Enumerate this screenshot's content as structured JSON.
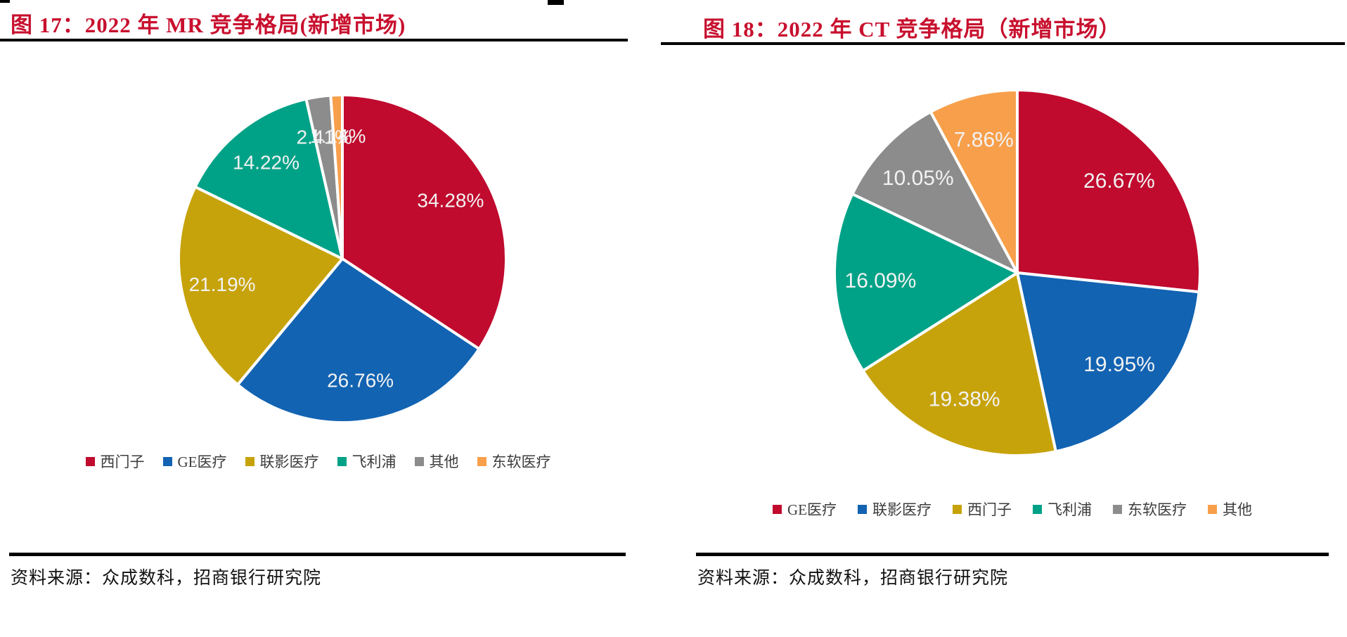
{
  "chart_data": [
    {
      "type": "pie",
      "title": "图 17：2022 年 MR 竞争格局(新增市场)",
      "categories": [
        "西门子",
        "GE医疗",
        "联影医疗",
        "飞利浦",
        "其他",
        "东软医疗"
      ],
      "values": [
        34.28,
        26.76,
        21.19,
        14.22,
        2.41,
        1.14
      ],
      "labels": [
        "34.28%",
        "26.76%",
        "21.19%",
        "14.22%",
        "2.41%",
        "1.14%"
      ],
      "colors": [
        "#C00A2E",
        "#1263B2",
        "#C7A30B",
        "#00A287",
        "#8C8C8C",
        "#F89F4B"
      ],
      "start_angle_deg": 0,
      "direction": "clockwise",
      "label_color": "#F2F2F2",
      "legend_position": "bottom",
      "source": "资料来源：众成数科，招商银行研究院"
    },
    {
      "type": "pie",
      "title": "图 18：2022 年 CT 竞争格局（新增市场）",
      "categories": [
        "GE医疗",
        "联影医疗",
        "西门子",
        "飞利浦",
        "东软医疗",
        "其他"
      ],
      "values": [
        26.67,
        19.95,
        19.38,
        16.09,
        10.05,
        7.86
      ],
      "labels": [
        "26.67%",
        "19.95%",
        "19.38%",
        "16.09%",
        "10.05%",
        "7.86%"
      ],
      "colors": [
        "#C00A2E",
        "#1263B2",
        "#C7A30B",
        "#00A287",
        "#8C8C8C",
        "#F89F4B"
      ],
      "start_angle_deg": 0,
      "direction": "clockwise",
      "label_color": "#F2F2F2",
      "legend_position": "bottom",
      "source": "资料来源：众成数科，招商银行研究院"
    }
  ],
  "styles": {
    "title_color": "#C8102E",
    "legend_text_color": "#3D3D3D",
    "source_text_color": "#111111",
    "rule_color": "#000000",
    "slice_border_color": "#FFFFFF"
  }
}
